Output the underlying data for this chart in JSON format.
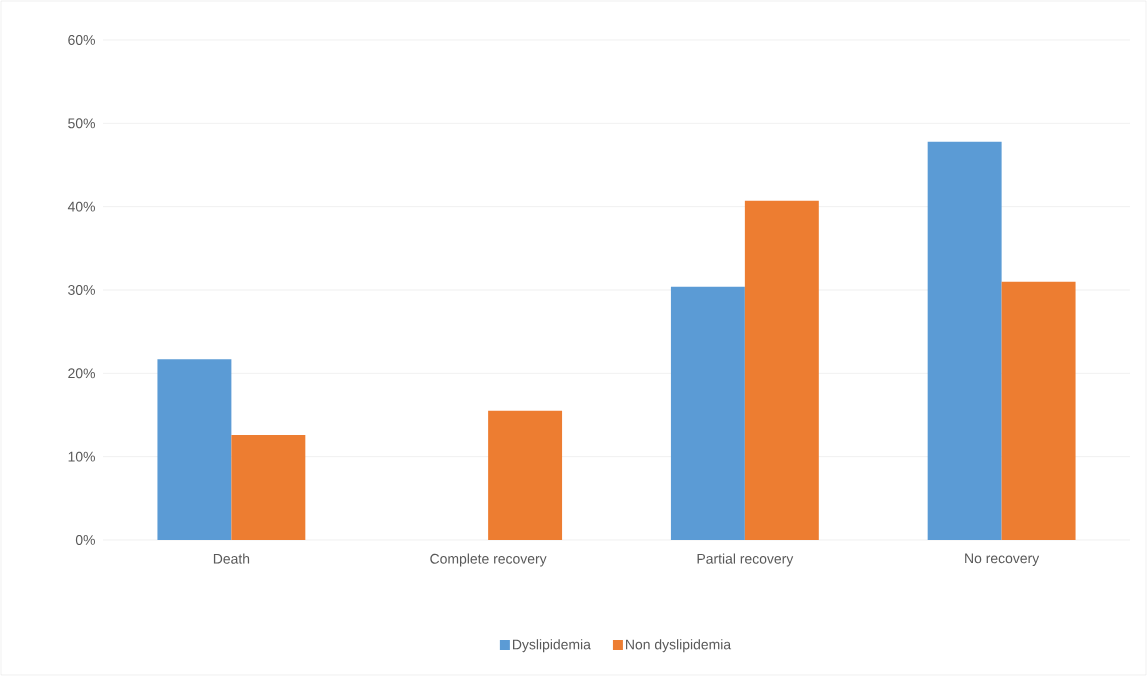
{
  "chart_data": {
    "type": "bar",
    "categories": [
      "Death",
      "Complete recovery",
      "Partial recovery",
      "No recovery"
    ],
    "series": [
      {
        "name": "Dyslipidemia",
        "color": "#5b9bd5",
        "values": [
          21.7,
          0,
          30.4,
          47.8
        ]
      },
      {
        "name": "Non dyslipidemia",
        "color": "#ed7d31",
        "values": [
          12.6,
          15.5,
          40.7,
          31.0
        ]
      }
    ],
    "ylim": [
      0,
      60
    ],
    "yticks": [
      {
        "value": 0,
        "label": "0%"
      },
      {
        "value": 10,
        "label": "10%"
      },
      {
        "value": 20,
        "label": "20%"
      },
      {
        "value": 30,
        "label": "30%"
      },
      {
        "value": 40,
        "label": "40%"
      },
      {
        "value": 50,
        "label": "50%"
      },
      {
        "value": 60,
        "label": "60%"
      }
    ],
    "grid": "y",
    "legend": "bottom"
  }
}
